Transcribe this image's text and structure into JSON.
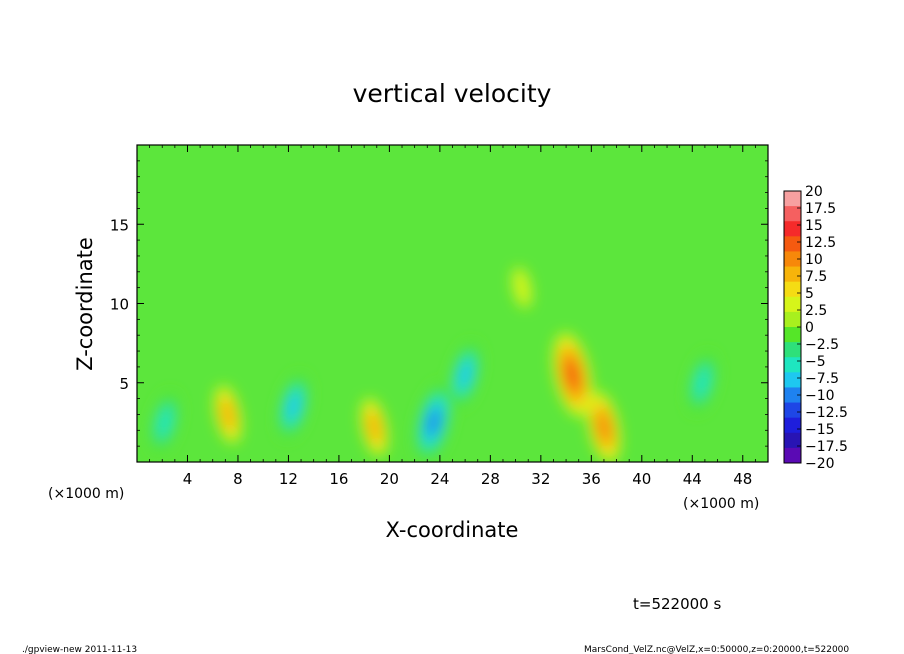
{
  "chart_data": {
    "type": "heatmap",
    "title": "vertical velocity",
    "xlabel": "X-coordinate",
    "ylabel": "Z-coordinate",
    "x_unit_left": "(×1000 m)",
    "x_unit_right": "(×1000 m)",
    "xlim": [
      0,
      50
    ],
    "ylim": [
      0,
      20
    ],
    "x_ticks": [
      4,
      8,
      12,
      16,
      20,
      24,
      28,
      32,
      36,
      40,
      44,
      48
    ],
    "y_ticks": [
      5,
      10,
      15
    ],
    "colorbar": {
      "labels": [
        "20",
        "17.5",
        "15",
        "12.5",
        "10",
        "7.5",
        "5",
        "2.5",
        "0",
        "−2.5",
        "−5",
        "−7.5",
        "−10",
        "−12.5",
        "−15",
        "−17.5",
        "−20"
      ],
      "colors": [
        "#f7a0a0",
        "#f56060",
        "#f52a2a",
        "#f55a10",
        "#f7880a",
        "#f7b40a",
        "#f5dc14",
        "#d6f51a",
        "#a8f01e",
        "#55e628",
        "#2ee07a",
        "#1ee6c0",
        "#1ec8f0",
        "#1e82f0",
        "#1e46e6",
        "#1e1edc",
        "#2814b4",
        "#5a0ab4"
      ]
    },
    "features": [
      {
        "x": 2.2,
        "z": 2.5,
        "value": -8
      },
      {
        "x": 7.2,
        "z": 3.0,
        "value": 7
      },
      {
        "x": 12.4,
        "z": 3.5,
        "value": -9
      },
      {
        "x": 18.8,
        "z": 2.2,
        "value": 7
      },
      {
        "x": 23.5,
        "z": 2.5,
        "value": -12
      },
      {
        "x": 26.0,
        "z": 5.5,
        "value": -9
      },
      {
        "x": 34.5,
        "z": 5.5,
        "value": 13
      },
      {
        "x": 37.0,
        "z": 2.2,
        "value": 10
      },
      {
        "x": 44.8,
        "z": 5.0,
        "value": -8
      },
      {
        "x": 30.5,
        "z": 11.0,
        "value": 3
      }
    ]
  },
  "annotation": {
    "time": "t=522000 s",
    "footer_left": "./gpview-new  2011-11-13",
    "footer_right": "MarsCond_VelZ.nc@VelZ,x=0:50000,z=0:20000,t=522000"
  }
}
